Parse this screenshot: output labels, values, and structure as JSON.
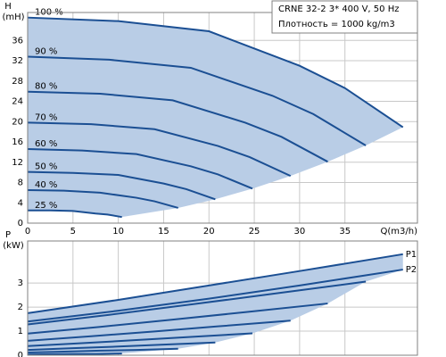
{
  "chart_data": [
    {
      "type": "line",
      "xlabel": "Q(m3/h)",
      "ylabel": "H",
      "yunit": "(mH)",
      "annotations": [
        "CRNE 32-2   3* 400 V, 50 Hz",
        "Плотность = 1000 kg/m3"
      ],
      "xlim": [
        0,
        43
      ],
      "ylim": [
        0,
        41.5
      ],
      "xticks": [
        0,
        5,
        10,
        15,
        20,
        25,
        30,
        35
      ],
      "yticks": [
        0,
        4,
        8,
        12,
        16,
        20,
        24,
        28,
        32,
        36
      ],
      "grid": true,
      "line_color": "#1b4f93",
      "fill_color": "#b9cde6",
      "series_label_position": "start",
      "series": [
        {
          "name": "100 %",
          "x": [
            0,
            10,
            20,
            30,
            35,
            41.4
          ],
          "values": [
            40.5,
            39.8,
            37.8,
            31,
            26.6,
            18.9
          ]
        },
        {
          "name": "90 %",
          "x": [
            0,
            9,
            18,
            27,
            31.5,
            37.3
          ],
          "values": [
            32.8,
            32.2,
            30.6,
            25.1,
            21.5,
            15.3
          ]
        },
        {
          "name": "80 %",
          "x": [
            0,
            8,
            16,
            24,
            28,
            33.1
          ],
          "values": [
            25.9,
            25.5,
            24.2,
            19.8,
            17,
            12.1
          ]
        },
        {
          "name": "70 %",
          "x": [
            0,
            7,
            14,
            21,
            24.5,
            29
          ],
          "values": [
            19.8,
            19.5,
            18.5,
            15.2,
            13,
            9.3
          ]
        },
        {
          "name": "60 %",
          "x": [
            0,
            6,
            12,
            18,
            21,
            24.8
          ],
          "values": [
            14.6,
            14.3,
            13.6,
            11.2,
            9.6,
            6.8
          ]
        },
        {
          "name": "50 %",
          "x": [
            0,
            5,
            10,
            15,
            17.5,
            20.7
          ],
          "values": [
            10.1,
            9.9,
            9.5,
            7.8,
            6.7,
            4.7
          ]
        },
        {
          "name": "40 %",
          "x": [
            0,
            4,
            8,
            12,
            14,
            16.6
          ],
          "values": [
            6.5,
            6.4,
            6,
            5,
            4.3,
            3
          ]
        },
        {
          "name": "25 %",
          "x": [
            0,
            2.5,
            5,
            7.5,
            8.8,
            10.4
          ],
          "values": [
            2.5,
            2.5,
            2.4,
            1.9,
            1.7,
            1.2
          ]
        }
      ]
    },
    {
      "type": "line",
      "ylabel": "P",
      "yunit": "(kW)",
      "xlim": [
        0,
        43
      ],
      "ylim": [
        0,
        4.75
      ],
      "yticks": [
        0,
        1,
        2,
        3
      ],
      "grid": true,
      "line_color": "#1b4f93",
      "fill_color": "#b9cde6",
      "series_label_position": "end",
      "series": [
        {
          "name": "P1",
          "x": [
            0,
            10,
            20,
            30,
            41.4
          ],
          "values": [
            1.75,
            2.3,
            2.9,
            3.5,
            4.2
          ]
        },
        {
          "name": "P2",
          "x": [
            0,
            10,
            20,
            30,
            41.4
          ],
          "values": [
            1.4,
            1.85,
            2.35,
            2.9,
            3.56
          ]
        },
        {
          "x": [
            0,
            9,
            18,
            27,
            37.3
          ],
          "values": [
            1.28,
            1.68,
            2.11,
            2.55,
            3.06
          ]
        },
        {
          "x": [
            0,
            8,
            16,
            24,
            33.1
          ],
          "values": [
            0.9,
            1.18,
            1.48,
            1.79,
            2.15
          ]
        },
        {
          "x": [
            0,
            7,
            14,
            21,
            29
          ],
          "values": [
            0.6,
            0.79,
            0.99,
            1.2,
            1.44
          ]
        },
        {
          "x": [
            0,
            6,
            12,
            18,
            24.8
          ],
          "values": [
            0.38,
            0.5,
            0.63,
            0.76,
            0.91
          ]
        },
        {
          "x": [
            0,
            5,
            10,
            15,
            20.7
          ],
          "values": [
            0.22,
            0.29,
            0.36,
            0.44,
            0.53
          ]
        },
        {
          "x": [
            0,
            4,
            8,
            12,
            16.6
          ],
          "values": [
            0.11,
            0.15,
            0.19,
            0.22,
            0.27
          ]
        },
        {
          "x": [
            0,
            2.5,
            5,
            7.5,
            10.4
          ],
          "values": [
            0.03,
            0.04,
            0.05,
            0.05,
            0.07
          ]
        }
      ]
    }
  ]
}
